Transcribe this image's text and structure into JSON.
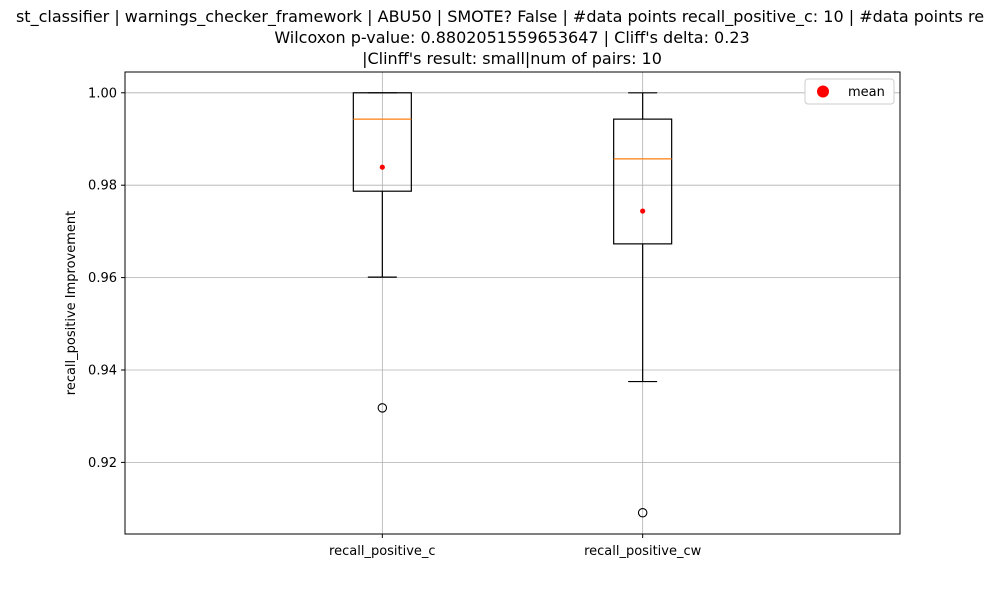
{
  "chart_data": {
    "type": "box",
    "title_lines": [
      "st_classifier | warnings_checker_framework | ABU50 | SMOTE? False | #data points recall_positive_c: 10 | #data points re",
      "Wilcoxon p-value: 0.8802051559653647 | Cliff's delta: 0.23",
      "|Clinff's result: small|num of pairs: 10"
    ],
    "xlabel": "",
    "ylabel": "recall_positive Improvement",
    "ylim": [
      0.9045,
      1.0045
    ],
    "yticks": [
      0.92,
      0.94,
      0.96,
      0.98,
      1.0
    ],
    "ytick_labels": [
      "0.92",
      "0.94",
      "0.96",
      "0.98",
      "1.00"
    ],
    "grid": true,
    "legend": {
      "position": "top-right",
      "entries": [
        "mean"
      ]
    },
    "colors": {
      "median": "#ff7f0e",
      "mean": "#ff0000",
      "box": "#000000",
      "grid": "#b0b0b0"
    },
    "boxes": [
      {
        "label": "recall_positive_c",
        "q1": 0.9787,
        "median": 0.9943,
        "q3": 1.0,
        "whisker_low": 0.9601,
        "whisker_high": 1.0,
        "mean": 0.9839,
        "outliers": [
          0.9318
        ]
      },
      {
        "label": "recall_positive_cw",
        "q1": 0.9673,
        "median": 0.9857,
        "q3": 0.9943,
        "whisker_low": 0.9375,
        "whisker_high": 1.0,
        "mean": 0.9744,
        "outliers": [
          0.9091
        ]
      }
    ]
  }
}
